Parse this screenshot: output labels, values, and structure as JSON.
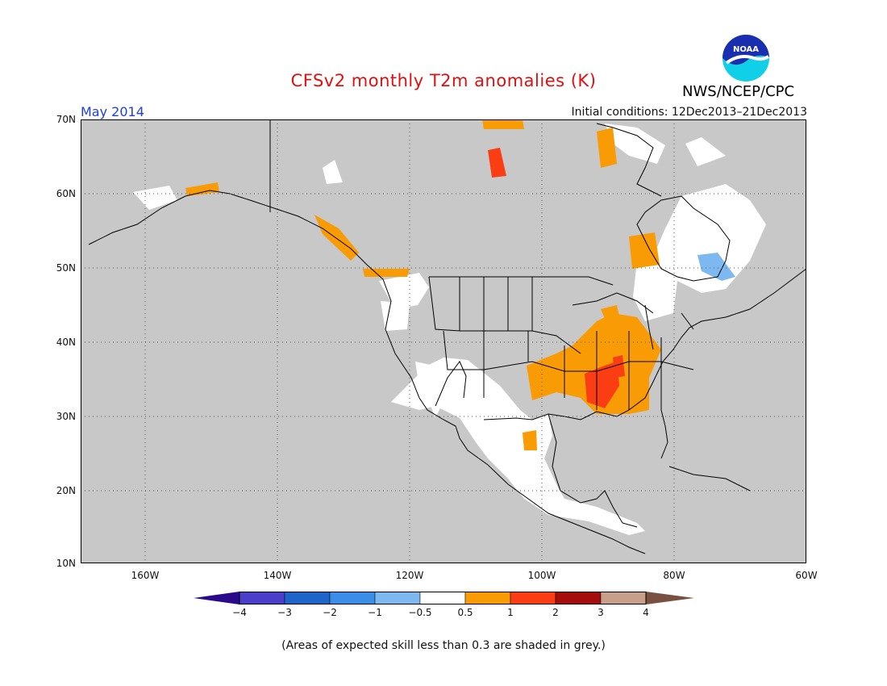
{
  "title": "CFSv2 monthly T2m anomalies (K)",
  "valid_month": "May 2014",
  "initial_conditions": "Initial conditions: 12Dec2013–21Dec2013",
  "agency": "NWS/NCEP/CPC",
  "logo_text": "NOAA",
  "footnote": "(Areas of expected skill less than 0.3 are shaded in grey.)",
  "axes": {
    "lat_labels": [
      "70N",
      "60N",
      "50N",
      "40N",
      "30N",
      "20N",
      "10N"
    ],
    "lon_labels": [
      "160W",
      "140W",
      "120W",
      "100W",
      "80W",
      "60W"
    ]
  },
  "colorbar": {
    "labels": [
      "−4",
      "−3",
      "−2",
      "−1",
      "−0.5",
      "0.5",
      "1",
      "2",
      "3",
      "4"
    ],
    "colors": [
      "#2a0a8a",
      "#4b3ecb",
      "#1f64c8",
      "#3a8ee8",
      "#7db9f0",
      "#ffffff",
      "#f99b05",
      "#fa3d12",
      "#a50c0c",
      "#c8a08a",
      "#7a5040"
    ]
  },
  "colors": {
    "grey_low_skill": "#c8c8c8",
    "neutral": "#ffffff",
    "warm1": "#f99b05",
    "warm2": "#fa3d12",
    "cool1": "#7db9f0"
  }
}
